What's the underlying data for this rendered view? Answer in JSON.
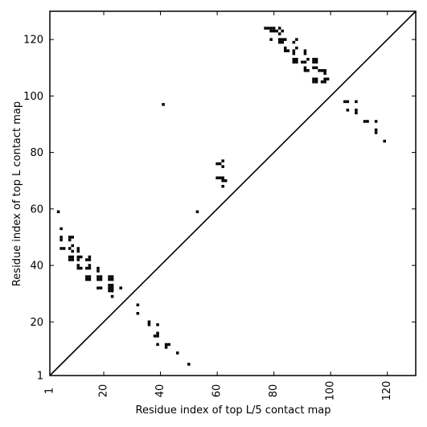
{
  "chart_data": {
    "type": "scatter",
    "xlabel": "Residue index of top L/5 contact map",
    "ylabel": "Residue index of top L contact map",
    "xlim": [
      1,
      130
    ],
    "ylim": [
      1,
      130
    ],
    "x_ticks": [
      1,
      20,
      40,
      60,
      80,
      100,
      120
    ],
    "y_ticks": [
      1,
      20,
      40,
      60,
      80,
      100,
      120
    ],
    "diagonal": true,
    "grid": false,
    "legend": "none",
    "marker": "square",
    "color": "#000000",
    "series": [
      {
        "points": [
          [
            4,
            59
          ],
          [
            5,
            53
          ],
          [
            5,
            50
          ],
          [
            5,
            49
          ],
          [
            5,
            46
          ],
          [
            6,
            46
          ],
          [
            8,
            50
          ],
          [
            9,
            50
          ],
          [
            8,
            49
          ],
          [
            9,
            47
          ],
          [
            8,
            46
          ],
          [
            9,
            45
          ],
          [
            8,
            43
          ],
          [
            9,
            43
          ],
          [
            8,
            42
          ],
          [
            9,
            42
          ],
          [
            11,
            46
          ],
          [
            11,
            45
          ],
          [
            11,
            43
          ],
          [
            12,
            43
          ],
          [
            11,
            42
          ],
          [
            11,
            40
          ],
          [
            11,
            39
          ],
          [
            12,
            39
          ],
          [
            15,
            43
          ],
          [
            14,
            42
          ],
          [
            15,
            42
          ],
          [
            15,
            40
          ],
          [
            14,
            39
          ],
          [
            15,
            39
          ],
          [
            14,
            36
          ],
          [
            15,
            36
          ],
          [
            14,
            35
          ],
          [
            15,
            35
          ],
          [
            18,
            39
          ],
          [
            18,
            38
          ],
          [
            18,
            36
          ],
          [
            19,
            36
          ],
          [
            18,
            35
          ],
          [
            19,
            35
          ],
          [
            18,
            32
          ],
          [
            19,
            32
          ],
          [
            22,
            36
          ],
          [
            23,
            36
          ],
          [
            22,
            35
          ],
          [
            23,
            35
          ],
          [
            22,
            33
          ],
          [
            23,
            33
          ],
          [
            22,
            32
          ],
          [
            23,
            32
          ],
          [
            22,
            31
          ],
          [
            23,
            31
          ],
          [
            26,
            32
          ],
          [
            23,
            29
          ],
          [
            32,
            26
          ],
          [
            32,
            23
          ],
          [
            36,
            20
          ],
          [
            36,
            19
          ],
          [
            39,
            19
          ],
          [
            39,
            16
          ],
          [
            38,
            15
          ],
          [
            39,
            15
          ],
          [
            39,
            12
          ],
          [
            42,
            12
          ],
          [
            43,
            12
          ],
          [
            42,
            11
          ],
          [
            46,
            9
          ],
          [
            50,
            5
          ],
          [
            41,
            97
          ],
          [
            53,
            59
          ],
          [
            60,
            76
          ],
          [
            61,
            76
          ],
          [
            62,
            77
          ],
          [
            62,
            75
          ],
          [
            60,
            71
          ],
          [
            61,
            71
          ],
          [
            62,
            71
          ],
          [
            62,
            70
          ],
          [
            63,
            70
          ],
          [
            62,
            68
          ],
          [
            77,
            124
          ],
          [
            78,
            124
          ],
          [
            79,
            124
          ],
          [
            80,
            124
          ],
          [
            82,
            124
          ],
          [
            79,
            123
          ],
          [
            80,
            123
          ],
          [
            81,
            123
          ],
          [
            83,
            123
          ],
          [
            82,
            122
          ],
          [
            79,
            120
          ],
          [
            82,
            120
          ],
          [
            83,
            120
          ],
          [
            84,
            120
          ],
          [
            82,
            119
          ],
          [
            83,
            119
          ],
          [
            88,
            120
          ],
          [
            87,
            119
          ],
          [
            84,
            117
          ],
          [
            84,
            116
          ],
          [
            85,
            116
          ],
          [
            87,
            116
          ],
          [
            88,
            117
          ],
          [
            87,
            115
          ],
          [
            91,
            116
          ],
          [
            91,
            115
          ],
          [
            87,
            113
          ],
          [
            88,
            113
          ],
          [
            87,
            112
          ],
          [
            88,
            112
          ],
          [
            90,
            112
          ],
          [
            91,
            112
          ],
          [
            92,
            113
          ],
          [
            94,
            113
          ],
          [
            95,
            113
          ],
          [
            94,
            112
          ],
          [
            95,
            112
          ],
          [
            91,
            110
          ],
          [
            91,
            109
          ],
          [
            92,
            109
          ],
          [
            94,
            110
          ],
          [
            95,
            110
          ],
          [
            96,
            109
          ],
          [
            97,
            109
          ],
          [
            98,
            109
          ],
          [
            98,
            108
          ],
          [
            94,
            106
          ],
          [
            95,
            106
          ],
          [
            94,
            105
          ],
          [
            95,
            105
          ],
          [
            97,
            105
          ],
          [
            98,
            105
          ],
          [
            98,
            106
          ],
          [
            99,
            106
          ],
          [
            105,
            98
          ],
          [
            106,
            98
          ],
          [
            109,
            98
          ],
          [
            106,
            95
          ],
          [
            109,
            95
          ],
          [
            109,
            94
          ],
          [
            112,
            91
          ],
          [
            113,
            91
          ],
          [
            116,
            91
          ],
          [
            116,
            88
          ],
          [
            116,
            87
          ],
          [
            119,
            84
          ]
        ]
      }
    ]
  }
}
